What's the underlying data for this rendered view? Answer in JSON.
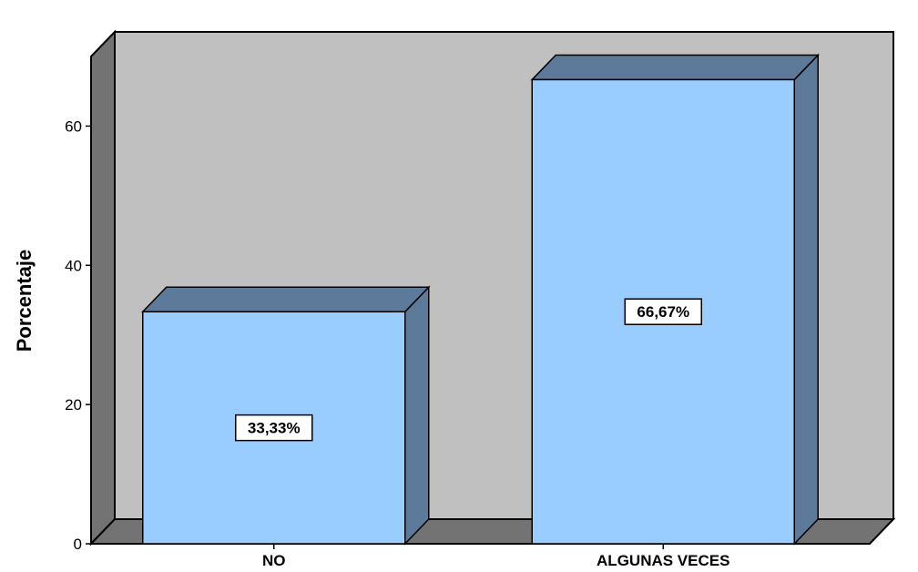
{
  "chart_data": {
    "type": "bar",
    "categories": [
      "NO",
      "ALGUNAS VECES"
    ],
    "values": [
      33.33,
      66.67
    ],
    "data_labels": [
      "33,33%",
      "66,67%"
    ],
    "title": "",
    "xlabel": "",
    "ylabel": "Porcentaje",
    "ylim": [
      0,
      70
    ],
    "yticks": [
      0,
      20,
      40,
      60
    ],
    "ytick_labels": [
      "0",
      "20",
      "40",
      "60"
    ],
    "grid": false,
    "legend": "none",
    "three_d": true,
    "colors": {
      "bar_front": "#99ccff",
      "bar_top": "#5d7a9b",
      "bar_side": "#5d7a9b",
      "wall_back": "#c0c0c0",
      "wall_side": "#737373",
      "floor": "#737373",
      "outline": "#000000",
      "label_box": "#ffffff"
    }
  }
}
